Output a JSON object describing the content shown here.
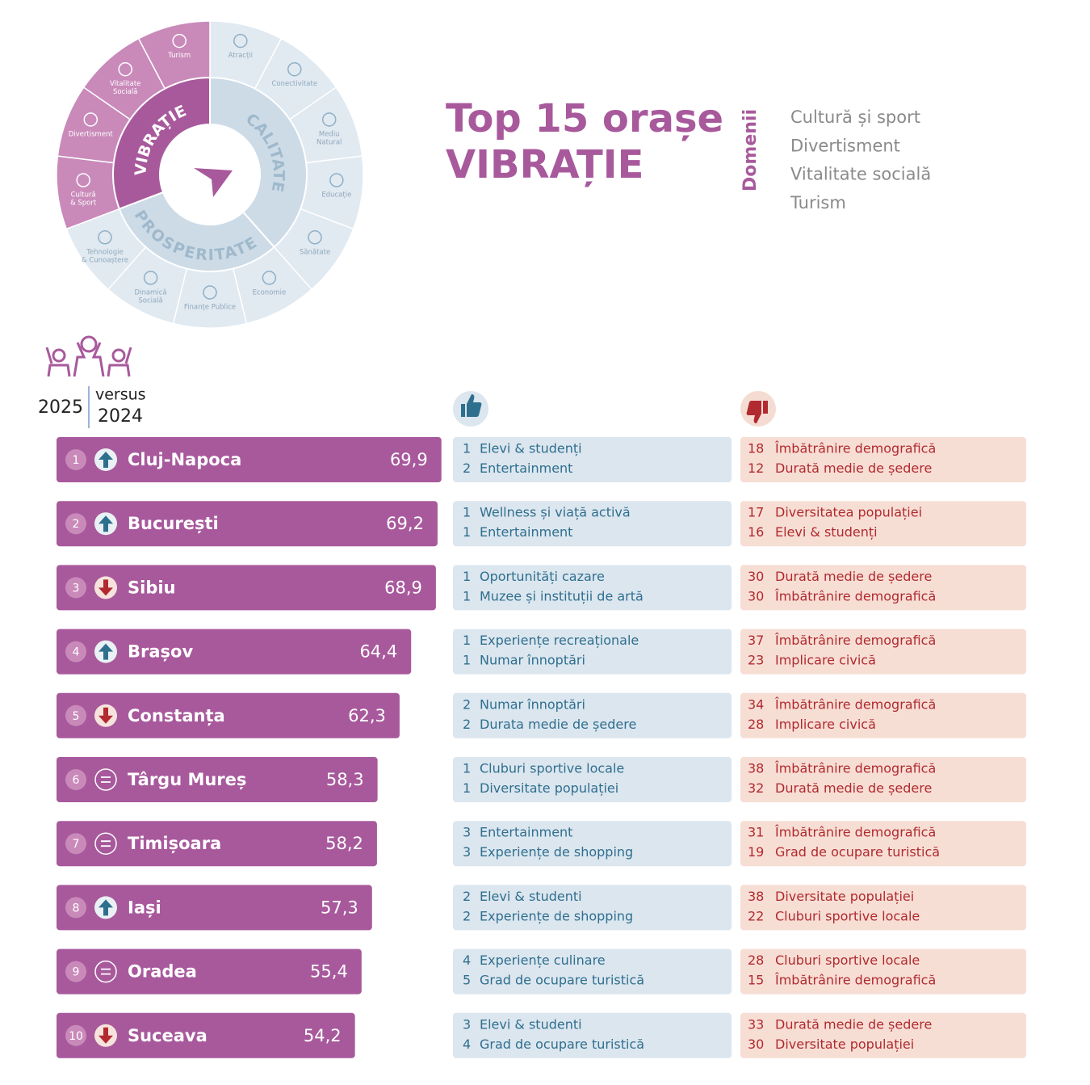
{
  "wheel": {
    "groups": [
      "CALITATE",
      "PROSPERITATE",
      "VIBRAȚIE"
    ],
    "segments": [
      {
        "lines": [
          "Atracții"
        ]
      },
      {
        "lines": [
          "Conectivitate"
        ]
      },
      {
        "lines": [
          "Mediu",
          "Natural"
        ]
      },
      {
        "lines": [
          "Educație"
        ]
      },
      {
        "lines": [
          "Sănătate"
        ]
      },
      {
        "lines": [
          "Economie"
        ]
      },
      {
        "lines": [
          "Finanțe Publice"
        ]
      },
      {
        "lines": [
          "Dinamică",
          "Socială"
        ]
      },
      {
        "lines": [
          "Tehnologie",
          "& Cunoaștere"
        ]
      },
      {
        "lines": [
          "Cultură",
          "& Sport"
        ]
      },
      {
        "lines": [
          "Divertisment"
        ]
      },
      {
        "lines": [
          "Vitalitate",
          "Socială"
        ]
      },
      {
        "lines": [
          "Turism"
        ]
      }
    ]
  },
  "title": [
    "Top 15 orașe",
    "VIBRAȚIE"
  ],
  "domains": {
    "label": "Domenii",
    "items": [
      "Cultură și sport",
      "Divertisment",
      "Vitalitate socială",
      "Turism"
    ]
  },
  "legend": {
    "year_current": "2025",
    "versus": "versus",
    "year_previous": "2024"
  },
  "chart_data": {
    "type": "bar",
    "orientation": "horizontal",
    "color": "#a8599c",
    "ranks": [
      1,
      2,
      3,
      4,
      5,
      6,
      7,
      8,
      9,
      10
    ],
    "trend": [
      "up",
      "up",
      "down",
      "up",
      "down",
      "same",
      "same",
      "up",
      "same",
      "down"
    ],
    "categories": [
      "Cluj-Napoca",
      "București",
      "Sibiu",
      "Brașov",
      "Constanța",
      "Târgu Mureș",
      "Timișoara",
      "Iași",
      "Oradea",
      "Suceava"
    ],
    "values": [
      69.9,
      69.2,
      68.9,
      64.4,
      62.3,
      58.3,
      58.2,
      57.3,
      55.4,
      54.2
    ],
    "value_labels": [
      "69,9",
      "69,2",
      "68,9",
      "64,4",
      "62,3",
      "58,3",
      "58,2",
      "57,3",
      "55,4",
      "54,2"
    ],
    "xlim": [
      0,
      70
    ]
  },
  "strengths": [
    [
      {
        "rank": 1,
        "label": "Elevi & studenți"
      },
      {
        "rank": 2,
        "label": "Entertainment"
      }
    ],
    [
      {
        "rank": 1,
        "label": "Wellness și viață activă"
      },
      {
        "rank": 1,
        "label": "Entertainment"
      }
    ],
    [
      {
        "rank": 1,
        "label": "Oportunități cazare"
      },
      {
        "rank": 1,
        "label": "Muzee și instituții de artă"
      }
    ],
    [
      {
        "rank": 1,
        "label": "Experiențe recreaționale"
      },
      {
        "rank": 1,
        "label": "Numar înnoptări"
      }
    ],
    [
      {
        "rank": 2,
        "label": "Numar înnoptări"
      },
      {
        "rank": 2,
        "label": "Durata medie de ședere"
      }
    ],
    [
      {
        "rank": 1,
        "label": "Cluburi sportive locale"
      },
      {
        "rank": 1,
        "label": "Diversitate populației"
      }
    ],
    [
      {
        "rank": 3,
        "label": "Entertainment"
      },
      {
        "rank": 3,
        "label": "Experiențe de shopping"
      }
    ],
    [
      {
        "rank": 2,
        "label": "Elevi & studenti"
      },
      {
        "rank": 2,
        "label": "Experiențe de shopping"
      }
    ],
    [
      {
        "rank": 4,
        "label": "Experiențe culinare"
      },
      {
        "rank": 5,
        "label": "Grad de ocupare turistică"
      }
    ],
    [
      {
        "rank": 3,
        "label": "Elevi & studenti"
      },
      {
        "rank": 4,
        "label": "Grad de ocupare turistică"
      }
    ]
  ],
  "weaknesses": [
    [
      {
        "rank": 18,
        "label": "Îmbătrânire demografică"
      },
      {
        "rank": 12,
        "label": "Durată medie de ședere"
      }
    ],
    [
      {
        "rank": 17,
        "label": "Diversitatea populației"
      },
      {
        "rank": 16,
        "label": "Elevi & studenți"
      }
    ],
    [
      {
        "rank": 30,
        "label": "Durată medie de ședere"
      },
      {
        "rank": 30,
        "label": "Îmbătrânire demografică"
      }
    ],
    [
      {
        "rank": 37,
        "label": "Îmbătrânire demografică"
      },
      {
        "rank": 23,
        "label": "Implicare civică"
      }
    ],
    [
      {
        "rank": 34,
        "label": "Îmbătrânire demografică"
      },
      {
        "rank": 28,
        "label": "Implicare civică"
      }
    ],
    [
      {
        "rank": 38,
        "label": "Îmbătrânire demografică"
      },
      {
        "rank": 32,
        "label": "Durată medie de ședere"
      }
    ],
    [
      {
        "rank": 31,
        "label": "Îmbătrânire demografică"
      },
      {
        "rank": 19,
        "label": "Grad de ocupare turistică"
      }
    ],
    [
      {
        "rank": 38,
        "label": "Diversitate populației"
      },
      {
        "rank": 22,
        "label": "Cluburi sportive locale"
      }
    ],
    [
      {
        "rank": 28,
        "label": "Cluburi sportive locale"
      },
      {
        "rank": 15,
        "label": "Îmbătrânire demografică"
      }
    ],
    [
      {
        "rank": 33,
        "label": "Durată medie de ședere"
      },
      {
        "rank": 30,
        "label": "Diversitate populației"
      }
    ]
  ]
}
